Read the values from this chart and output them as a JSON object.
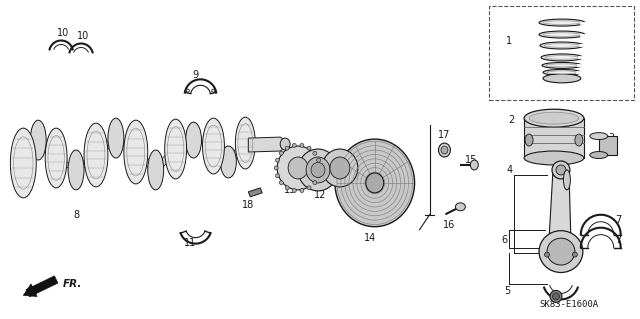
{
  "bg_color": "#ffffff",
  "fig_width": 6.4,
  "fig_height": 3.19,
  "dpi": 100,
  "code_text": "SK83-E1600A",
  "label_fontsize": 7.0
}
